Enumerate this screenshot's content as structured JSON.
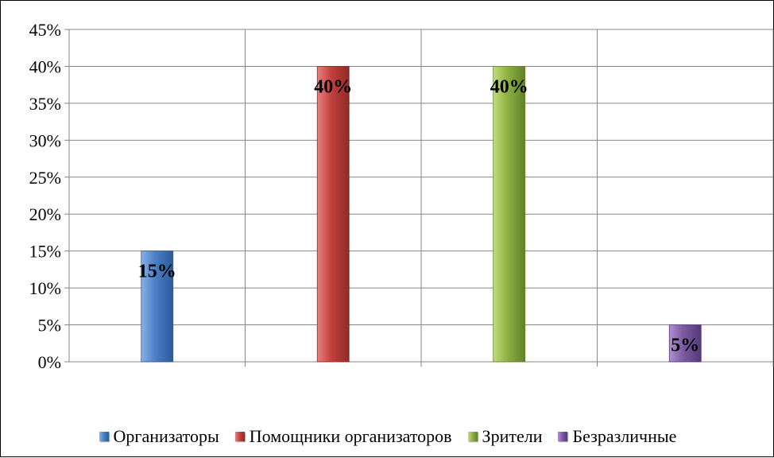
{
  "chart_data": {
    "type": "bar",
    "categories": [
      "Организаторы",
      "Помощники организаторов",
      "Зрители",
      "Безразличные"
    ],
    "values": [
      15,
      40,
      40,
      5
    ],
    "data_labels": [
      "15%",
      "40%",
      "40%",
      "5%"
    ],
    "y_tick_labels": [
      "0%",
      "5%",
      "10%",
      "15%",
      "20%",
      "25%",
      "30%",
      "35%",
      "40%",
      "45%"
    ],
    "ylim": [
      0,
      45
    ],
    "y_step": 5,
    "grid": true,
    "legend_position": "bottom",
    "colors": [
      "#4a7ec4",
      "#c0403c",
      "#8db042",
      "#7b59a0"
    ],
    "dark_colors": [
      "#2d5a9a",
      "#8f2a27",
      "#61812a",
      "#54397a"
    ],
    "light_colors": [
      "#8ab0e6",
      "#e8807c",
      "#c2dd7c",
      "#ae90cf"
    ]
  }
}
